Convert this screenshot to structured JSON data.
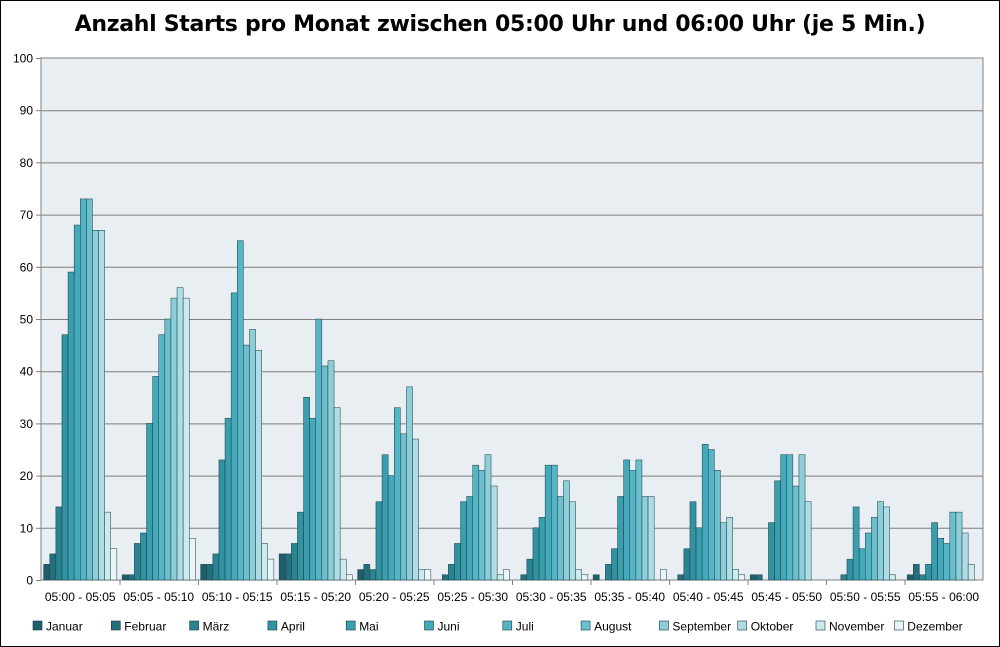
{
  "chart_data": {
    "type": "bar",
    "title": "Anzahl Starts pro Monat zwischen 05:00 Uhr und 06:00 Uhr (je 5 Min.)",
    "xlabel": "",
    "ylabel": "",
    "ylim": [
      0,
      100
    ],
    "yticks": [
      0,
      10,
      20,
      30,
      40,
      50,
      60,
      70,
      80,
      90,
      100
    ],
    "grid": true,
    "legend_position": "bottom",
    "categories": [
      "05:00 - 05:05",
      "05:05 - 05:10",
      "05:10 - 05:15",
      "05:15 - 05:20",
      "05:20 - 05:25",
      "05:25 - 05:30",
      "05:30 - 05:35",
      "05:35 - 05:40",
      "05:40 - 05:45",
      "05:45 - 05:50",
      "05:50 - 05:55",
      "05:55 - 06:00"
    ],
    "series": [
      {
        "name": "Januar",
        "color": "#1f5f6b",
        "values": [
          3,
          1,
          3,
          5,
          2,
          0,
          0,
          1,
          0,
          1,
          0,
          1
        ]
      },
      {
        "name": "Februar",
        "color": "#236f7d",
        "values": [
          5,
          1,
          3,
          5,
          3,
          1,
          1,
          0,
          1,
          1,
          0,
          3
        ]
      },
      {
        "name": "März",
        "color": "#2a8391",
        "values": [
          14,
          7,
          5,
          7,
          2,
          3,
          4,
          3,
          6,
          0,
          1,
          1
        ]
      },
      {
        "name": "April",
        "color": "#3192a2",
        "values": [
          47,
          9,
          23,
          13,
          15,
          7,
          10,
          6,
          15,
          11,
          4,
          3
        ]
      },
      {
        "name": "Mai",
        "color": "#399fae",
        "values": [
          59,
          30,
          31,
          35,
          24,
          15,
          12,
          16,
          10,
          19,
          14,
          11
        ]
      },
      {
        "name": "Juni",
        "color": "#44aabb",
        "values": [
          68,
          39,
          55,
          31,
          20,
          16,
          22,
          23,
          26,
          24,
          6,
          8
        ]
      },
      {
        "name": "Juli",
        "color": "#54b5c6",
        "values": [
          73,
          47,
          65,
          50,
          33,
          22,
          22,
          21,
          25,
          24,
          9,
          7
        ]
      },
      {
        "name": "August",
        "color": "#6cbfcd",
        "values": [
          73,
          50,
          45,
          41,
          28,
          21,
          16,
          23,
          21,
          18,
          12,
          13
        ]
      },
      {
        "name": "September",
        "color": "#8ccfd9",
        "values": [
          67,
          54,
          48,
          42,
          37,
          24,
          19,
          16,
          11,
          24,
          15,
          13
        ]
      },
      {
        "name": "Oktober",
        "color": "#afdde5",
        "values": [
          67,
          56,
          44,
          33,
          27,
          18,
          15,
          16,
          12,
          15,
          14,
          9
        ]
      },
      {
        "name": "November",
        "color": "#cdeaef",
        "values": [
          13,
          54,
          7,
          4,
          2,
          1,
          2,
          0,
          2,
          0,
          1,
          3
        ]
      },
      {
        "name": "Dezember",
        "color": "#e9f5f7",
        "values": [
          6,
          8,
          4,
          1,
          2,
          2,
          1,
          2,
          1,
          0,
          0,
          0
        ]
      }
    ]
  }
}
